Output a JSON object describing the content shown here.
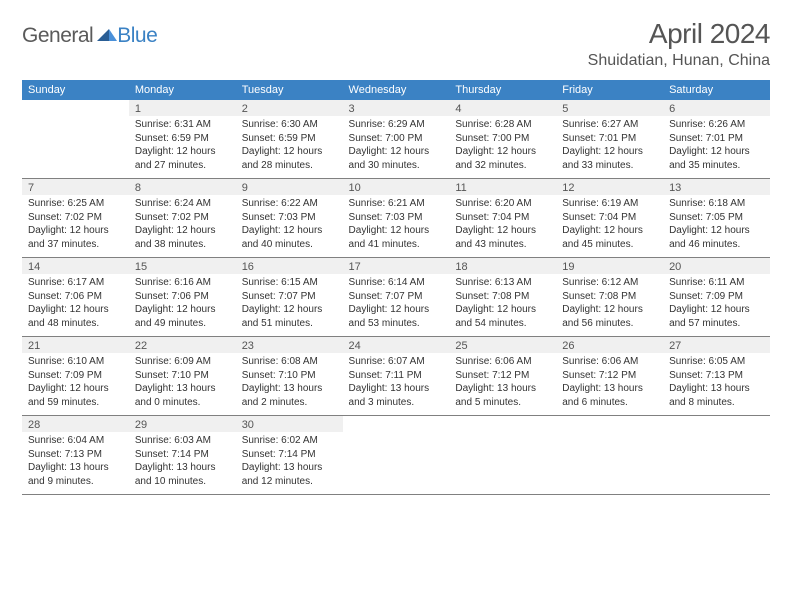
{
  "logo": {
    "text1": "General",
    "text2": "Blue"
  },
  "title": "April 2024",
  "location": "Shuidatian, Hunan, China",
  "colors": {
    "header_bg": "#3b82c4",
    "header_fg": "#ffffff",
    "daynum_bg": "#f0f0f0",
    "text_muted": "#555555",
    "text_body": "#333333",
    "rule": "#808080",
    "background": "#ffffff"
  },
  "typography": {
    "title_fontsize": 28,
    "location_fontsize": 16,
    "weekday_fontsize": 11,
    "daynum_fontsize": 11,
    "body_fontsize": 10
  },
  "days_of_week": [
    "Sunday",
    "Monday",
    "Tuesday",
    "Wednesday",
    "Thursday",
    "Friday",
    "Saturday"
  ],
  "weeks": [
    [
      null,
      {
        "n": 1,
        "sunrise": "6:31 AM",
        "sunset": "6:59 PM",
        "dl": "12 hours and 27 minutes."
      },
      {
        "n": 2,
        "sunrise": "6:30 AM",
        "sunset": "6:59 PM",
        "dl": "12 hours and 28 minutes."
      },
      {
        "n": 3,
        "sunrise": "6:29 AM",
        "sunset": "7:00 PM",
        "dl": "12 hours and 30 minutes."
      },
      {
        "n": 4,
        "sunrise": "6:28 AM",
        "sunset": "7:00 PM",
        "dl": "12 hours and 32 minutes."
      },
      {
        "n": 5,
        "sunrise": "6:27 AM",
        "sunset": "7:01 PM",
        "dl": "12 hours and 33 minutes."
      },
      {
        "n": 6,
        "sunrise": "6:26 AM",
        "sunset": "7:01 PM",
        "dl": "12 hours and 35 minutes."
      }
    ],
    [
      {
        "n": 7,
        "sunrise": "6:25 AM",
        "sunset": "7:02 PM",
        "dl": "12 hours and 37 minutes."
      },
      {
        "n": 8,
        "sunrise": "6:24 AM",
        "sunset": "7:02 PM",
        "dl": "12 hours and 38 minutes."
      },
      {
        "n": 9,
        "sunrise": "6:22 AM",
        "sunset": "7:03 PM",
        "dl": "12 hours and 40 minutes."
      },
      {
        "n": 10,
        "sunrise": "6:21 AM",
        "sunset": "7:03 PM",
        "dl": "12 hours and 41 minutes."
      },
      {
        "n": 11,
        "sunrise": "6:20 AM",
        "sunset": "7:04 PM",
        "dl": "12 hours and 43 minutes."
      },
      {
        "n": 12,
        "sunrise": "6:19 AM",
        "sunset": "7:04 PM",
        "dl": "12 hours and 45 minutes."
      },
      {
        "n": 13,
        "sunrise": "6:18 AM",
        "sunset": "7:05 PM",
        "dl": "12 hours and 46 minutes."
      }
    ],
    [
      {
        "n": 14,
        "sunrise": "6:17 AM",
        "sunset": "7:06 PM",
        "dl": "12 hours and 48 minutes."
      },
      {
        "n": 15,
        "sunrise": "6:16 AM",
        "sunset": "7:06 PM",
        "dl": "12 hours and 49 minutes."
      },
      {
        "n": 16,
        "sunrise": "6:15 AM",
        "sunset": "7:07 PM",
        "dl": "12 hours and 51 minutes."
      },
      {
        "n": 17,
        "sunrise": "6:14 AM",
        "sunset": "7:07 PM",
        "dl": "12 hours and 53 minutes."
      },
      {
        "n": 18,
        "sunrise": "6:13 AM",
        "sunset": "7:08 PM",
        "dl": "12 hours and 54 minutes."
      },
      {
        "n": 19,
        "sunrise": "6:12 AM",
        "sunset": "7:08 PM",
        "dl": "12 hours and 56 minutes."
      },
      {
        "n": 20,
        "sunrise": "6:11 AM",
        "sunset": "7:09 PM",
        "dl": "12 hours and 57 minutes."
      }
    ],
    [
      {
        "n": 21,
        "sunrise": "6:10 AM",
        "sunset": "7:09 PM",
        "dl": "12 hours and 59 minutes."
      },
      {
        "n": 22,
        "sunrise": "6:09 AM",
        "sunset": "7:10 PM",
        "dl": "13 hours and 0 minutes."
      },
      {
        "n": 23,
        "sunrise": "6:08 AM",
        "sunset": "7:10 PM",
        "dl": "13 hours and 2 minutes."
      },
      {
        "n": 24,
        "sunrise": "6:07 AM",
        "sunset": "7:11 PM",
        "dl": "13 hours and 3 minutes."
      },
      {
        "n": 25,
        "sunrise": "6:06 AM",
        "sunset": "7:12 PM",
        "dl": "13 hours and 5 minutes."
      },
      {
        "n": 26,
        "sunrise": "6:06 AM",
        "sunset": "7:12 PM",
        "dl": "13 hours and 6 minutes."
      },
      {
        "n": 27,
        "sunrise": "6:05 AM",
        "sunset": "7:13 PM",
        "dl": "13 hours and 8 minutes."
      }
    ],
    [
      {
        "n": 28,
        "sunrise": "6:04 AM",
        "sunset": "7:13 PM",
        "dl": "13 hours and 9 minutes."
      },
      {
        "n": 29,
        "sunrise": "6:03 AM",
        "sunset": "7:14 PM",
        "dl": "13 hours and 10 minutes."
      },
      {
        "n": 30,
        "sunrise": "6:02 AM",
        "sunset": "7:14 PM",
        "dl": "13 hours and 12 minutes."
      },
      null,
      null,
      null,
      null
    ]
  ],
  "labels": {
    "sunrise": "Sunrise:",
    "sunset": "Sunset:",
    "daylight": "Daylight:"
  }
}
